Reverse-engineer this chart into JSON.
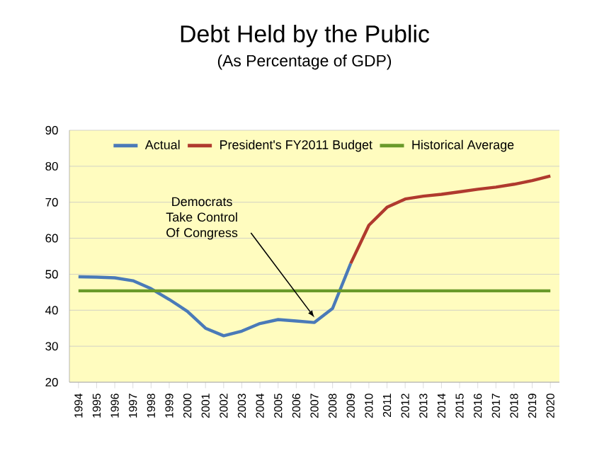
{
  "chart_data": {
    "type": "line",
    "title": "Debt Held by the Public",
    "subtitle": "(As Percentage of GDP)",
    "categories": [
      "1994",
      "1995",
      "1996",
      "1997",
      "1998",
      "1999",
      "2000",
      "2001",
      "2002",
      "2003",
      "2004",
      "2005",
      "2006",
      "2007",
      "2008",
      "2009",
      "2010",
      "2011",
      "2012",
      "2013",
      "2014",
      "2015",
      "2016",
      "2017",
      "2018",
      "2019",
      "2020"
    ],
    "series": [
      {
        "name": "Actual",
        "color": "#4a7ab8",
        "values": [
          49.3,
          49.2,
          49.0,
          48.2,
          46.0,
          43.0,
          39.7,
          35.0,
          32.9,
          34.2,
          36.3,
          37.4,
          37.0,
          36.6,
          40.5,
          53.0,
          null,
          null,
          null,
          null,
          null,
          null,
          null,
          null,
          null,
          null,
          null
        ]
      },
      {
        "name": "President's FY2011 Budget",
        "color": "#b03a2e",
        "values": [
          null,
          null,
          null,
          null,
          null,
          null,
          null,
          null,
          null,
          null,
          null,
          null,
          null,
          null,
          null,
          53.0,
          63.6,
          68.6,
          70.9,
          71.7,
          72.2,
          72.9,
          73.6,
          74.2,
          75.0,
          76.0,
          77.3
        ]
      },
      {
        "name": "Historical Average",
        "color": "#6a9a2a",
        "values": [
          45.4,
          45.4,
          45.4,
          45.4,
          45.4,
          45.4,
          45.4,
          45.4,
          45.4,
          45.4,
          45.4,
          45.4,
          45.4,
          45.4,
          45.4,
          45.4,
          45.4,
          45.4,
          45.4,
          45.4,
          45.4,
          45.4,
          45.4,
          45.4,
          45.4,
          45.4,
          45.4
        ]
      }
    ],
    "ylim": [
      20,
      90
    ],
    "yticks": [
      20,
      30,
      40,
      50,
      60,
      70,
      80,
      90
    ],
    "grid": "y",
    "legend": "top",
    "marker": "none",
    "line_style": "solid",
    "annotations": [
      {
        "text": "Democrats Take Control Of Congress",
        "x": "2007",
        "y": 38
      }
    ]
  }
}
